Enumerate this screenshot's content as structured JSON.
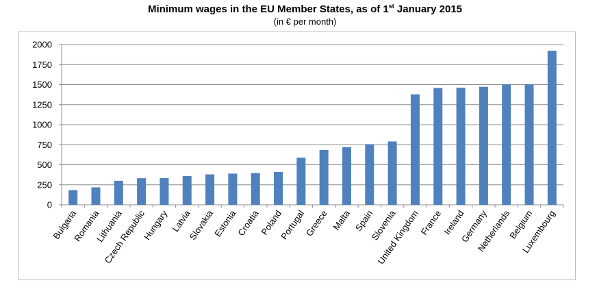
{
  "title": {
    "text": "Minimum wages in the EU Member States, as of 1",
    "sup": "st",
    "tail": " January 2015"
  },
  "subtitle": "(in € per month)",
  "chart_data": {
    "type": "bar",
    "title": "Minimum wages in the EU Member States, as of 1st January 2015",
    "subtitle": "(in € per month)",
    "xlabel": "",
    "ylabel": "",
    "ylim": [
      0,
      2000
    ],
    "yticks": [
      0,
      250,
      500,
      750,
      1000,
      1250,
      1500,
      1750,
      2000
    ],
    "grid": true,
    "bar_color": "#4f81bd",
    "categories": [
      "Bulgaria",
      "Romania",
      "Lithuania",
      "Czech Republic",
      "Hungary",
      "Latvia",
      "Slovakia",
      "Estonia",
      "Croatia",
      "Poland",
      "Portugal",
      "Greece",
      "Malta",
      "Spain",
      "Slovenia",
      "United Kingdom",
      "France",
      "Ireland",
      "Germany",
      "Netherlands",
      "Belgium",
      "Luxembourg"
    ],
    "values": [
      184,
      218,
      300,
      332,
      333,
      360,
      380,
      390,
      396,
      410,
      589,
      684,
      720,
      757,
      791,
      1379,
      1458,
      1462,
      1473,
      1502,
      1502,
      1923
    ]
  }
}
